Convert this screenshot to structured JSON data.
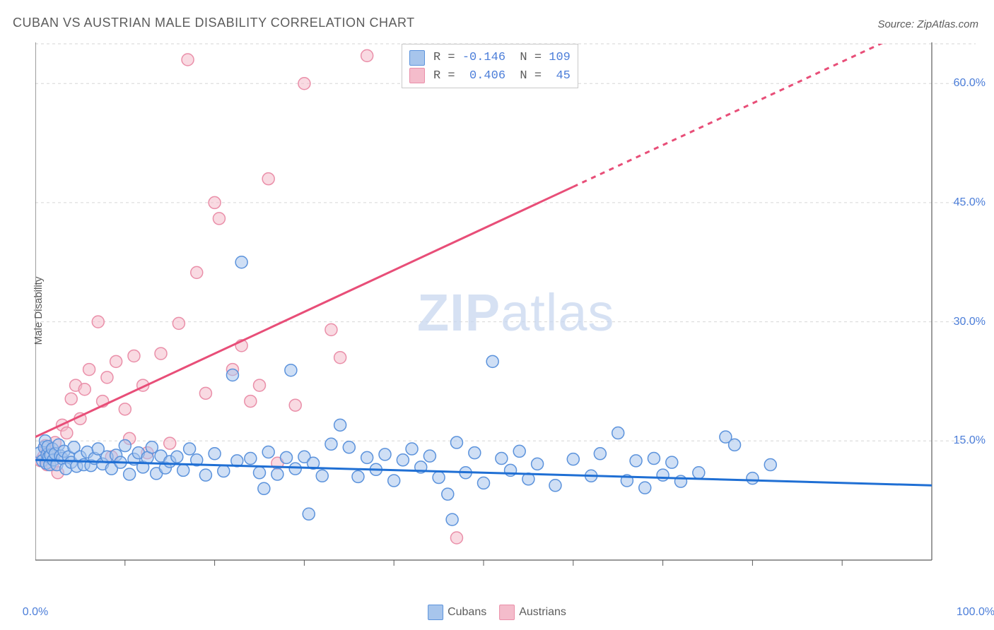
{
  "title": "CUBAN VS AUSTRIAN MALE DISABILITY CORRELATION CHART",
  "source": "Source: ZipAtlas.com",
  "ylabel": "Male Disability",
  "watermark": {
    "left": "ZIP",
    "right": "atlas"
  },
  "chart": {
    "type": "scatter",
    "background_color": "#ffffff",
    "grid_color": "#d6d6d6",
    "axis_color": "#5c5c5c",
    "axis_label_color": "#4c7ed9",
    "xlim": [
      0,
      100
    ],
    "ylim": [
      0,
      65
    ],
    "x_minor_tick_step": 10,
    "yticks": [
      {
        "v": 15,
        "label": "15.0%"
      },
      {
        "v": 30,
        "label": "30.0%"
      },
      {
        "v": 45,
        "label": "45.0%"
      },
      {
        "v": 60,
        "label": "60.0%"
      }
    ],
    "x_start_label": "0.0%",
    "x_end_label": "100.0%",
    "point_radius": 8.5,
    "point_stroke_width": 1.5,
    "series": [
      {
        "id": "cubans",
        "label": "Cubans",
        "fill": "#a7c5ec",
        "fill_opacity": 0.55,
        "stroke": "#5c93dc",
        "trend": {
          "y_at_x0": 12.6,
          "y_at_x100": 9.4,
          "solid_until_x": 100,
          "width": 3,
          "color": "#1f6fd4"
        },
        "stats": {
          "R": "-0.146",
          "N": "109"
        },
        "points": [
          [
            0.5,
            13.5
          ],
          [
            0.8,
            12.5
          ],
          [
            1.0,
            14.2
          ],
          [
            1.1,
            15.0
          ],
          [
            1.2,
            12.2
          ],
          [
            1.3,
            13.3
          ],
          [
            1.4,
            14.3
          ],
          [
            1.5,
            13.0
          ],
          [
            1.6,
            12.0
          ],
          [
            1.7,
            13.2
          ],
          [
            1.9,
            14.0
          ],
          [
            2.0,
            12.6
          ],
          [
            2.2,
            13.4
          ],
          [
            2.4,
            12.0
          ],
          [
            2.6,
            14.5
          ],
          [
            2.8,
            13.1
          ],
          [
            3.0,
            12.8
          ],
          [
            3.2,
            13.7
          ],
          [
            3.4,
            11.5
          ],
          [
            3.7,
            13.0
          ],
          [
            4.0,
            12.3
          ],
          [
            4.3,
            14.2
          ],
          [
            4.6,
            11.8
          ],
          [
            5.0,
            13.0
          ],
          [
            5.4,
            12.0
          ],
          [
            5.8,
            13.6
          ],
          [
            6.2,
            11.9
          ],
          [
            6.6,
            12.8
          ],
          [
            7.0,
            14.0
          ],
          [
            7.5,
            12.1
          ],
          [
            8,
            13.0
          ],
          [
            8.5,
            11.5
          ],
          [
            9,
            13.2
          ],
          [
            9.5,
            12.3
          ],
          [
            10,
            14.4
          ],
          [
            10.5,
            10.8
          ],
          [
            11,
            12.7
          ],
          [
            11.5,
            13.5
          ],
          [
            12,
            11.7
          ],
          [
            12.5,
            12.9
          ],
          [
            13,
            14.2
          ],
          [
            13.5,
            10.9
          ],
          [
            14,
            13.1
          ],
          [
            14.5,
            11.6
          ],
          [
            15,
            12.4
          ],
          [
            15.8,
            13.0
          ],
          [
            16.5,
            11.3
          ],
          [
            17.2,
            14.0
          ],
          [
            18,
            12.6
          ],
          [
            19,
            10.7
          ],
          [
            20,
            13.4
          ],
          [
            21,
            11.2
          ],
          [
            22,
            23.3
          ],
          [
            22.5,
            12.5
          ],
          [
            23,
            37.5
          ],
          [
            24,
            12.8
          ],
          [
            25,
            11.0
          ],
          [
            25.5,
            9.0
          ],
          [
            26,
            13.6
          ],
          [
            27,
            10.8
          ],
          [
            28,
            12.9
          ],
          [
            28.5,
            23.9
          ],
          [
            29,
            11.5
          ],
          [
            30,
            13.0
          ],
          [
            30.5,
            5.8
          ],
          [
            31,
            12.2
          ],
          [
            32,
            10.6
          ],
          [
            33,
            14.6
          ],
          [
            34,
            17.0
          ],
          [
            35,
            14.2
          ],
          [
            36,
            10.5
          ],
          [
            37,
            12.9
          ],
          [
            38,
            11.4
          ],
          [
            39,
            13.3
          ],
          [
            40,
            10.0
          ],
          [
            41,
            12.6
          ],
          [
            42,
            14.0
          ],
          [
            43,
            11.7
          ],
          [
            44,
            13.1
          ],
          [
            45,
            10.4
          ],
          [
            46,
            8.3
          ],
          [
            46.5,
            5.1
          ],
          [
            47,
            14.8
          ],
          [
            48,
            11.0
          ],
          [
            49,
            13.5
          ],
          [
            50,
            9.7
          ],
          [
            51,
            25.0
          ],
          [
            52,
            12.8
          ],
          [
            53,
            11.3
          ],
          [
            54,
            13.7
          ],
          [
            55,
            10.2
          ],
          [
            56,
            12.1
          ],
          [
            58,
            9.4
          ],
          [
            60,
            12.7
          ],
          [
            62,
            10.6
          ],
          [
            63,
            13.4
          ],
          [
            65,
            16.0
          ],
          [
            66,
            10.0
          ],
          [
            67,
            12.5
          ],
          [
            68,
            9.1
          ],
          [
            69,
            12.8
          ],
          [
            70,
            10.7
          ],
          [
            71,
            12.3
          ],
          [
            72,
            9.9
          ],
          [
            74,
            11.0
          ],
          [
            77,
            15.5
          ],
          [
            78,
            14.5
          ],
          [
            80,
            10.3
          ],
          [
            82,
            12.0
          ]
        ]
      },
      {
        "id": "austrians",
        "label": "Austrians",
        "fill": "#f4bccb",
        "fill_opacity": 0.55,
        "stroke": "#ea8fa9",
        "trend": {
          "y_at_x0": 15.5,
          "y_at_x100": 68.0,
          "solid_until_x": 60,
          "width": 3,
          "color": "#e84e78"
        },
        "stats": {
          "R": "0.406",
          "N": "45"
        },
        "points": [
          [
            0.6,
            12.5
          ],
          [
            0.9,
            13.0
          ],
          [
            1.1,
            14.4
          ],
          [
            1.3,
            12.0
          ],
          [
            1.5,
            13.5
          ],
          [
            1.9,
            12.0
          ],
          [
            2.2,
            14.8
          ],
          [
            2.5,
            11.0
          ],
          [
            3,
            17.0
          ],
          [
            3.5,
            16.0
          ],
          [
            4,
            20.3
          ],
          [
            4.5,
            22.0
          ],
          [
            5,
            17.8
          ],
          [
            5.5,
            21.5
          ],
          [
            6,
            24.0
          ],
          [
            7,
            30.0
          ],
          [
            7.5,
            20.0
          ],
          [
            8,
            23.0
          ],
          [
            8.5,
            13.0
          ],
          [
            9,
            25.0
          ],
          [
            10,
            19.0
          ],
          [
            10.5,
            15.3
          ],
          [
            11,
            25.7
          ],
          [
            12,
            22.0
          ],
          [
            12.5,
            13.5
          ],
          [
            14,
            26.0
          ],
          [
            15,
            14.7
          ],
          [
            16,
            29.8
          ],
          [
            17,
            63.0
          ],
          [
            18,
            36.2
          ],
          [
            19,
            21.0
          ],
          [
            20,
            45.0
          ],
          [
            20.5,
            43.0
          ],
          [
            22,
            24.0
          ],
          [
            23,
            27.0
          ],
          [
            24,
            20.0
          ],
          [
            25,
            22.0
          ],
          [
            26,
            48.0
          ],
          [
            27,
            12.2
          ],
          [
            29,
            19.5
          ],
          [
            30,
            60.0
          ],
          [
            33,
            29.0
          ],
          [
            34,
            25.5
          ],
          [
            37,
            63.5
          ],
          [
            47,
            2.8
          ]
        ]
      }
    ]
  },
  "legend": [
    {
      "label": "Cubans",
      "color": "#a7c5ec",
      "border": "#5c93dc"
    },
    {
      "label": "Austrians",
      "color": "#f4bccb",
      "border": "#ea8fa9"
    }
  ]
}
